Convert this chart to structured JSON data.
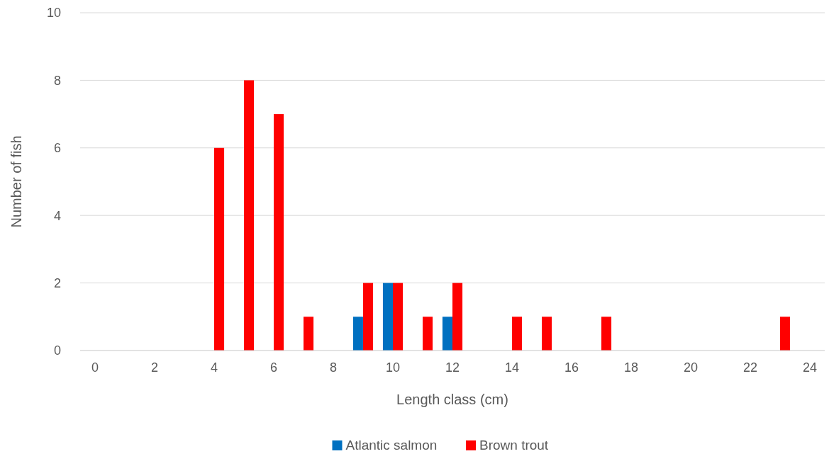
{
  "chart_data": {
    "type": "bar",
    "xlabel": "Length class (cm)",
    "ylabel": "Number of fish",
    "x": [
      0,
      1,
      2,
      3,
      4,
      5,
      6,
      7,
      8,
      9,
      10,
      11,
      12,
      13,
      14,
      15,
      16,
      17,
      18,
      19,
      20,
      21,
      22,
      23,
      24
    ],
    "xlim": [
      -0.5,
      24.5
    ],
    "xticks": [
      0,
      2,
      4,
      6,
      8,
      10,
      12,
      14,
      16,
      18,
      20,
      22,
      24
    ],
    "series": [
      {
        "name": "Atlantic salmon",
        "color": "#0070c0",
        "values": [
          0,
          0,
          0,
          0,
          0,
          0,
          0,
          0,
          0,
          1,
          2,
          0,
          1,
          0,
          0,
          0,
          0,
          0,
          0,
          0,
          0,
          0,
          0,
          0,
          0
        ]
      },
      {
        "name": "Brown trout",
        "color": "#ff0000",
        "values": [
          0,
          0,
          0,
          0,
          6,
          8,
          7,
          1,
          0,
          2,
          2,
          1,
          2,
          0,
          1,
          1,
          0,
          1,
          0,
          0,
          0,
          0,
          0,
          1,
          0
        ]
      }
    ],
    "ylim": [
      0,
      10
    ],
    "yticks": [
      0,
      2,
      4,
      6,
      8,
      10
    ],
    "grid": "y",
    "legend": "bottom"
  }
}
